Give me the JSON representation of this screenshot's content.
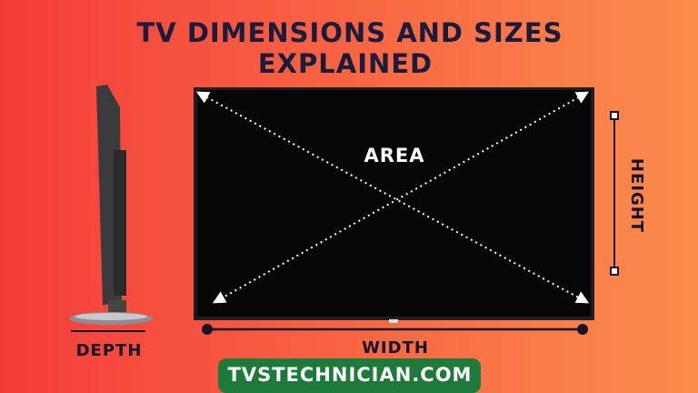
{
  "header": {
    "title_lines": [
      "TV DIMENSIONS AND SIZES",
      "EXPLAINED"
    ]
  },
  "labels": {
    "area": "AREA",
    "height": "HEIGHT",
    "width": "WIDTH",
    "depth": "DEPTH"
  },
  "footer": {
    "site": "TVSTECHNICIAN.COM"
  }
}
